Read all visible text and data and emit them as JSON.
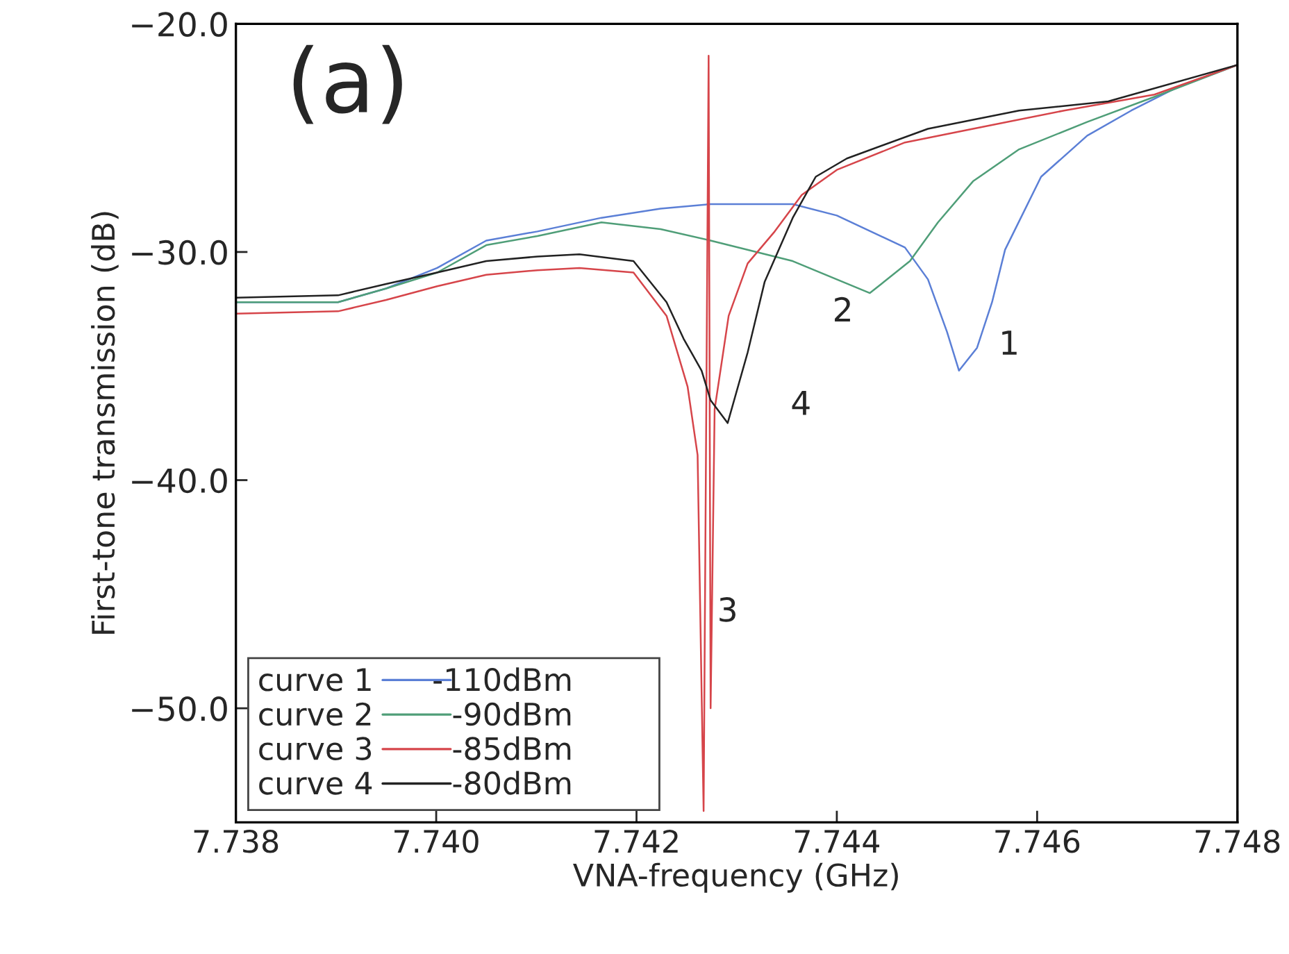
{
  "chart_data": {
    "type": "line",
    "xlabel": "VNA-frequency (GHz)",
    "ylabel": "First-tone transmission (dB)",
    "xlim": [
      7.738,
      7.748
    ],
    "ylim": [
      -55,
      -20
    ],
    "xticks": [
      {
        "value": 7.738,
        "label": "7.738"
      },
      {
        "value": 7.74,
        "label": "7.740"
      },
      {
        "value": 7.742,
        "label": "7.742"
      },
      {
        "value": 7.744,
        "label": "7.744"
      },
      {
        "value": 7.746,
        "label": "7.746"
      },
      {
        "value": 7.748,
        "label": "7.748"
      }
    ],
    "yticks": [
      {
        "value": -20,
        "label": "−20.0"
      },
      {
        "value": -30,
        "label": "−30.0"
      },
      {
        "value": -40,
        "label": "−40.0"
      },
      {
        "value": -50,
        "label": "−50.0"
      }
    ],
    "legend": "bottom left",
    "grid": false,
    "marker": "none",
    "line_style": "solid",
    "series": [
      {
        "name": "curve 1",
        "color": "#5b7fd6",
        "x": [
          7.738,
          7.73902,
          7.7395,
          7.74001,
          7.7405,
          7.74101,
          7.74165,
          7.74224,
          7.74274,
          7.74356,
          7.744,
          7.74468,
          7.74491,
          7.7451,
          7.74522,
          7.7454,
          7.74555,
          7.74568,
          7.74604,
          7.7465,
          7.74694,
          7.74739,
          7.748
        ],
        "values": [
          -32.2,
          -32.2,
          -31.6,
          -30.7,
          -29.5,
          -29.1,
          -28.5,
          -28.1,
          -27.9,
          -27.9,
          -28.4,
          -29.8,
          -31.2,
          -33.5,
          -35.2,
          -34.2,
          -32.2,
          -29.9,
          -26.7,
          -24.9,
          -23.8,
          -22.8,
          -21.8
        ]
      },
      {
        "name": "curve 2",
        "color": "#4f9e78",
        "x": [
          7.738,
          7.73902,
          7.7395,
          7.74001,
          7.7405,
          7.74101,
          7.74165,
          7.74224,
          7.74274,
          7.74356,
          7.74433,
          7.74473,
          7.74501,
          7.74536,
          7.74582,
          7.7465,
          7.74717,
          7.748
        ],
        "values": [
          -32.2,
          -32.2,
          -31.6,
          -30.9,
          -29.7,
          -29.3,
          -28.7,
          -29.0,
          -29.5,
          -30.4,
          -31.8,
          -30.4,
          -28.7,
          -26.9,
          -25.5,
          -24.3,
          -23.2,
          -21.8
        ]
      },
      {
        "name": "curve 3",
        "color": "#d6454a",
        "x": [
          7.738,
          7.73902,
          7.7395,
          7.74001,
          7.7405,
          7.74101,
          7.74143,
          7.74197,
          7.7423,
          7.74251,
          7.74261,
          7.74267,
          7.74272,
          7.74274,
          7.74278,
          7.74292,
          7.74311,
          7.74338,
          7.74365,
          7.744,
          7.74468,
          7.74536,
          7.74627,
          7.74717,
          7.748
        ],
        "values": [
          -32.7,
          -32.6,
          -32.1,
          -31.5,
          -31.0,
          -30.8,
          -30.7,
          -30.9,
          -32.8,
          -35.9,
          -38.9,
          -54.5,
          -21.4,
          -50.0,
          -36.9,
          -32.8,
          -30.5,
          -29.1,
          -27.5,
          -26.4,
          -25.2,
          -24.6,
          -23.8,
          -23.1,
          -21.8
        ]
      },
      {
        "name": "curve 4",
        "color": "#222222",
        "x": [
          7.738,
          7.73902,
          7.7395,
          7.74001,
          7.7405,
          7.74101,
          7.74143,
          7.74197,
          7.7423,
          7.74247,
          7.74265,
          7.74274,
          7.74291,
          7.74311,
          7.74328,
          7.74356,
          7.74379,
          7.7441,
          7.74491,
          7.74582,
          7.74671,
          7.748
        ],
        "values": [
          -32.0,
          -31.9,
          -31.4,
          -30.9,
          -30.4,
          -30.2,
          -30.1,
          -30.4,
          -32.2,
          -33.8,
          -35.2,
          -36.5,
          -37.5,
          -34.4,
          -31.3,
          -28.5,
          -26.7,
          -25.9,
          -24.6,
          -23.8,
          -23.4,
          -21.8
        ]
      }
    ],
    "annotations": [
      "-110dBm",
      "-90dBm",
      "-85dBm",
      "-80dBm",
      "(a)",
      {
        "text": "1",
        "x": 7.74522,
        "y": -35.2
      },
      {
        "text": "2",
        "x": 7.74433,
        "y": -31.8
      },
      {
        "text": "3",
        "x": 7.74264,
        "y": -45.8
      },
      {
        "text": "4",
        "x": 7.74291,
        "y": -37.5
      }
    ]
  }
}
